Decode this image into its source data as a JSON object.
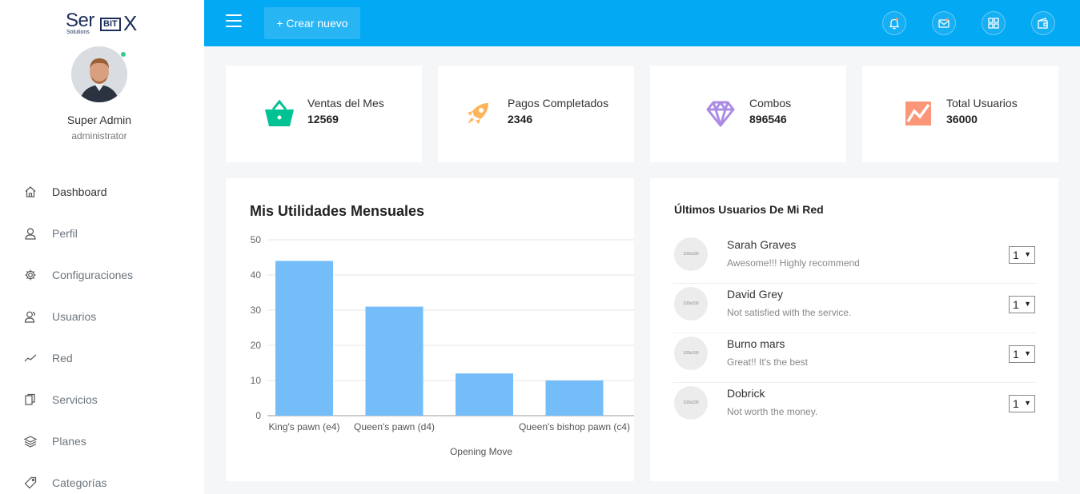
{
  "brand": {
    "logo_main": "Ser",
    "logo_badge": "BIT",
    "logo_x": "X",
    "logo_sub": "Solutions"
  },
  "profile": {
    "name": "Super Admin",
    "role": "administrator",
    "status_color": "#2ecc8f"
  },
  "nav": [
    {
      "label": "Dashboard",
      "icon": "home-icon"
    },
    {
      "label": "Perfil",
      "icon": "user-icon"
    },
    {
      "label": "Configuraciones",
      "icon": "gear-icon"
    },
    {
      "label": "Usuarios",
      "icon": "users-icon"
    },
    {
      "label": "Red",
      "icon": "trend-icon"
    },
    {
      "label": "Servicios",
      "icon": "copy-icon"
    },
    {
      "label": "Planes",
      "icon": "layers-icon"
    },
    {
      "label": "Categorías",
      "icon": "tag-icon"
    }
  ],
  "topbar": {
    "create_label": "+ Crear nuevo",
    "accent": "#03a9f3"
  },
  "stats": [
    {
      "label": "Ventas del Mes",
      "value": "12569",
      "icon": "basket-icon",
      "color": "#00c292"
    },
    {
      "label": "Pagos Completados",
      "value": "2346",
      "icon": "rocket-icon",
      "color": "#fec107"
    },
    {
      "label": "Combos",
      "value": "896546",
      "icon": "diamond-icon",
      "color": "#ab8ce4"
    },
    {
      "label": "Total Usuarios",
      "value": "36000",
      "icon": "chart-line-icon",
      "color": "#fb9678"
    }
  ],
  "chart": {
    "title": "Mis Utilidades Mensuales",
    "bar_color": "#74bdf9"
  },
  "chart_data": {
    "type": "bar",
    "categories": [
      "King's pawn (e4)",
      "Queen's pawn (d4)",
      "",
      "Queen's bishop pawn (c4)",
      ""
    ],
    "values": [
      44,
      31,
      12,
      10,
      3
    ],
    "xlabel": "Opening Move",
    "ylabel": "",
    "ylim": [
      0,
      50
    ],
    "yticks": [
      0,
      10,
      20,
      30,
      40,
      50
    ],
    "grid": true
  },
  "users_panel": {
    "title": "Últimos Usuarios De Mi Red",
    "thumb_label": "100x100",
    "users": [
      {
        "name": "Sarah Graves",
        "message": "Awesome!!! Highly recommend",
        "select": "1"
      },
      {
        "name": "David Grey",
        "message": "Not satisfied with the service.",
        "select": "1"
      },
      {
        "name": "Burno mars",
        "message": "Great!! It's the best",
        "select": "1"
      },
      {
        "name": "Dobrick",
        "message": "Not worth the money.",
        "select": "1"
      }
    ]
  }
}
